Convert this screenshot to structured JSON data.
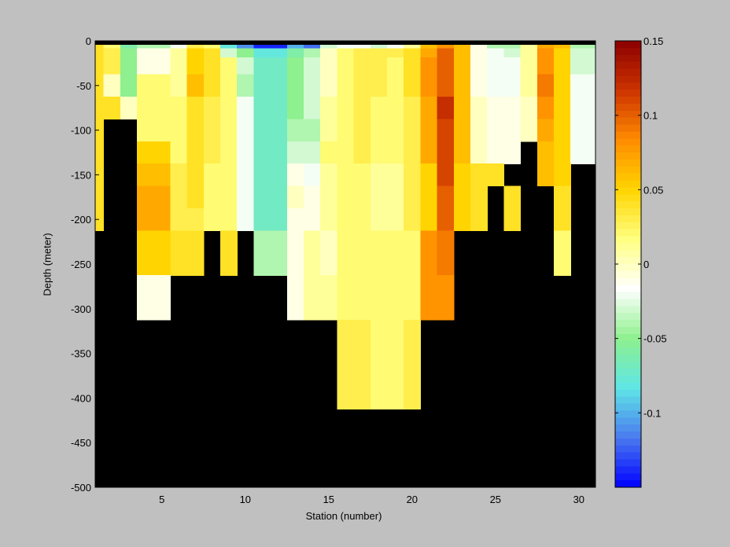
{
  "chart_data": {
    "type": "heatmap",
    "title": "",
    "xlabel": "Station (number)",
    "ylabel": "Depth (meter)",
    "xlim": [
      1,
      31
    ],
    "ylim": [
      -500,
      0
    ],
    "x_ticks": [
      5,
      10,
      15,
      20,
      25,
      30
    ],
    "y_ticks": [
      0,
      -50,
      -100,
      -150,
      -200,
      -250,
      -300,
      -350,
      -400,
      -450,
      -500
    ],
    "colorbar": {
      "range": [
        -0.15,
        0.15
      ],
      "ticks": [
        0.15,
        0.1,
        0.05,
        0,
        -0.05,
        -0.1
      ],
      "tick_labels": [
        "0.15",
        "0.1",
        "0.05",
        "0",
        "-0.05",
        "-0.1"
      ],
      "colormap": [
        "#0000ff",
        "#4a7bef",
        "#5fe6e6",
        "#8ef08e",
        "#ffffff",
        "#ffff80",
        "#ffd400",
        "#ff8c00",
        "#cc3300",
        "#8b0000"
      ]
    },
    "no_data_color": "#000000",
    "stations": [
      1,
      2,
      3,
      4,
      5,
      6,
      7,
      8,
      9,
      10,
      11,
      12,
      13,
      14,
      15,
      16,
      17,
      18,
      19,
      20,
      21,
      22,
      23,
      24,
      25,
      26,
      27,
      28,
      29,
      30
    ],
    "depth_levels": [
      -5,
      -12,
      -25,
      -50,
      -75,
      -100,
      -125,
      -150,
      -175,
      -200,
      -225,
      -250,
      -275,
      -300,
      -325,
      -350,
      -375,
      -400
    ],
    "values": [
      [
        0.04,
        0.02,
        -0.06,
        -0.04,
        -0.04,
        -0.02,
        0.03,
        0.02,
        -0.08,
        -0.11,
        -0.14,
        -0.14,
        -0.1,
        -0.12,
        -0.03,
        -0.02,
        -0.02,
        -0.03,
        -0.02,
        0.01,
        0.06,
        0.08,
        0.06,
        -0.01,
        -0.04,
        -0.04,
        0.01,
        0.07,
        0.06,
        -0.04
      ],
      [
        0.04,
        0.03,
        -0.05,
        -0.01,
        -0.01,
        0.01,
        0.05,
        0.04,
        -0.03,
        -0.05,
        -0.08,
        -0.08,
        -0.06,
        -0.04,
        0.0,
        0.02,
        0.03,
        0.03,
        0.03,
        0.04,
        0.07,
        0.1,
        0.06,
        -0.01,
        -0.02,
        -0.03,
        0.01,
        0.08,
        0.05,
        -0.03
      ],
      [
        0.04,
        0.03,
        -0.05,
        -0.01,
        -0.01,
        0.01,
        0.05,
        0.04,
        0.02,
        -0.03,
        -0.07,
        -0.07,
        -0.05,
        -0.03,
        0.0,
        0.02,
        0.03,
        0.03,
        0.02,
        0.04,
        0.08,
        0.1,
        0.06,
        -0.01,
        -0.02,
        -0.02,
        0.01,
        0.08,
        0.05,
        -0.03
      ],
      [
        0.04,
        0.0,
        -0.05,
        0.02,
        0.02,
        0.01,
        0.06,
        0.04,
        0.02,
        -0.04,
        -0.07,
        -0.07,
        -0.05,
        -0.03,
        0.0,
        0.02,
        0.03,
        0.03,
        0.02,
        0.04,
        0.08,
        0.1,
        0.06,
        -0.01,
        -0.02,
        -0.02,
        0.01,
        0.09,
        0.05,
        -0.02
      ],
      [
        0.04,
        0.04,
        0.0,
        0.02,
        0.02,
        0.02,
        0.04,
        0.03,
        0.02,
        -0.02,
        -0.07,
        -0.07,
        -0.05,
        -0.03,
        0.01,
        0.02,
        0.03,
        0.02,
        0.02,
        0.03,
        0.07,
        0.12,
        0.06,
        0.0,
        -0.01,
        -0.01,
        0.0,
        0.08,
        0.05,
        -0.02
      ],
      [
        0.04,
        null,
        null,
        0.02,
        0.02,
        0.02,
        0.04,
        0.03,
        0.02,
        -0.02,
        -0.07,
        -0.07,
        -0.04,
        -0.04,
        0.01,
        0.02,
        0.03,
        0.02,
        0.02,
        0.03,
        0.07,
        0.11,
        0.06,
        0.0,
        -0.01,
        -0.01,
        0.0,
        0.07,
        0.05,
        -0.02
      ],
      [
        0.04,
        null,
        null,
        0.05,
        0.05,
        0.02,
        0.04,
        0.03,
        0.02,
        -0.02,
        -0.07,
        -0.07,
        -0.03,
        -0.03,
        0.02,
        0.02,
        0.03,
        0.02,
        0.02,
        0.03,
        0.07,
        0.11,
        0.06,
        0.0,
        -0.01,
        -0.01,
        null,
        0.06,
        0.05,
        -0.02
      ],
      [
        0.04,
        null,
        null,
        0.06,
        0.06,
        0.03,
        0.04,
        0.02,
        0.02,
        -0.02,
        -0.07,
        -0.07,
        -0.01,
        -0.02,
        0.01,
        0.02,
        0.02,
        0.01,
        0.01,
        0.03,
        0.05,
        0.11,
        0.05,
        0.04,
        0.04,
        null,
        null,
        0.06,
        0.05,
        null
      ],
      [
        0.04,
        null,
        null,
        0.07,
        0.07,
        0.03,
        0.04,
        0.02,
        0.02,
        -0.02,
        -0.07,
        -0.07,
        0.0,
        -0.01,
        0.01,
        0.02,
        0.02,
        0.01,
        0.01,
        0.03,
        0.05,
        0.1,
        0.05,
        0.04,
        null,
        0.04,
        null,
        null,
        0.04,
        null
      ],
      [
        0.04,
        null,
        null,
        0.07,
        0.07,
        0.03,
        0.03,
        0.02,
        0.02,
        -0.02,
        -0.07,
        -0.07,
        -0.01,
        -0.01,
        0.01,
        0.02,
        0.02,
        0.01,
        0.01,
        0.03,
        0.05,
        0.1,
        0.05,
        0.04,
        null,
        0.04,
        null,
        null,
        0.04,
        null
      ],
      [
        null,
        null,
        null,
        0.05,
        0.05,
        0.04,
        0.04,
        null,
        0.04,
        null,
        -0.04,
        -0.04,
        -0.01,
        0.01,
        0.0,
        0.02,
        0.02,
        0.02,
        0.02,
        0.02,
        0.08,
        0.09,
        null,
        null,
        null,
        null,
        null,
        null,
        0.02,
        null
      ],
      [
        null,
        null,
        null,
        0.05,
        0.05,
        0.04,
        0.04,
        null,
        0.04,
        null,
        -0.04,
        -0.04,
        -0.01,
        0.01,
        0.0,
        0.02,
        0.02,
        0.02,
        0.02,
        0.02,
        0.08,
        0.09,
        null,
        null,
        null,
        null,
        null,
        null,
        0.02,
        null
      ],
      [
        null,
        null,
        null,
        -0.01,
        -0.01,
        null,
        null,
        null,
        null,
        null,
        null,
        null,
        -0.01,
        0.01,
        0.01,
        0.02,
        0.02,
        0.02,
        0.02,
        0.02,
        0.08,
        0.08,
        null,
        null,
        null,
        null,
        null,
        null,
        null,
        null
      ],
      [
        null,
        null,
        null,
        -0.01,
        -0.01,
        null,
        null,
        null,
        null,
        null,
        null,
        null,
        -0.01,
        0.01,
        0.01,
        0.02,
        0.02,
        0.02,
        0.02,
        0.02,
        0.08,
        0.08,
        null,
        null,
        null,
        null,
        null,
        null,
        null,
        null
      ],
      [
        null,
        null,
        null,
        null,
        null,
        null,
        null,
        null,
        null,
        null,
        null,
        null,
        null,
        null,
        null,
        0.03,
        0.03,
        0.02,
        0.02,
        0.03,
        null,
        null,
        null,
        null,
        null,
        null,
        null,
        null,
        null,
        null
      ],
      [
        null,
        null,
        null,
        null,
        null,
        null,
        null,
        null,
        null,
        null,
        null,
        null,
        null,
        null,
        null,
        0.03,
        0.03,
        0.02,
        0.02,
        0.03,
        null,
        null,
        null,
        null,
        null,
        null,
        null,
        null,
        null,
        null
      ],
      [
        null,
        null,
        null,
        null,
        null,
        null,
        null,
        null,
        null,
        null,
        null,
        null,
        null,
        null,
        null,
        0.03,
        0.03,
        0.02,
        0.02,
        0.03,
        null,
        null,
        null,
        null,
        null,
        null,
        null,
        null,
        null,
        null
      ],
      [
        null,
        null,
        null,
        null,
        null,
        null,
        null,
        null,
        null,
        null,
        null,
        null,
        null,
        null,
        null,
        0.03,
        0.03,
        0.02,
        0.02,
        0.03,
        null,
        null,
        null,
        null,
        null,
        null,
        null,
        null,
        null,
        null
      ]
    ]
  }
}
